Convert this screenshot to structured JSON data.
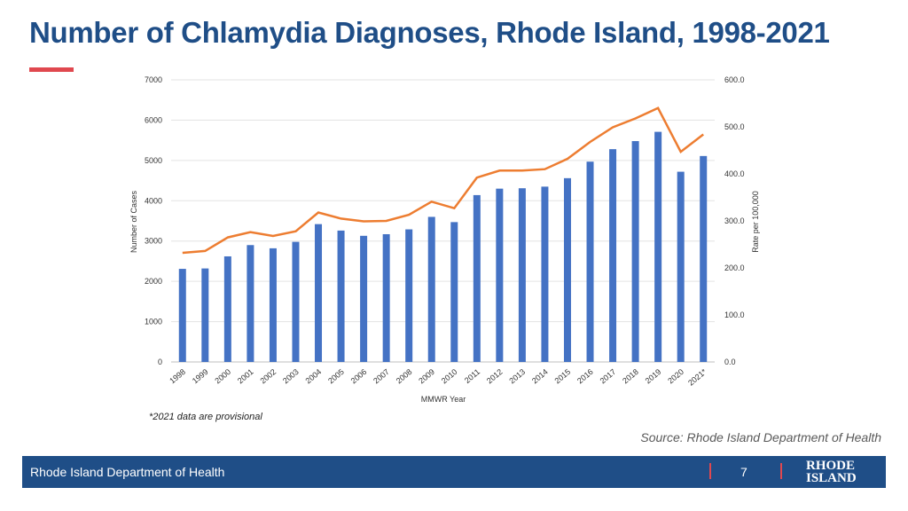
{
  "page": {
    "title": "Number of Chlamydia Diagnoses, Rhode Island, 1998-2021",
    "footnote": "*2021 data are provisional",
    "source_label": "Source:",
    "source_text": " Rhode Island Department of Health"
  },
  "footer": {
    "org": "Rhode Island Department of Health",
    "page_number": "7",
    "logo_line1": "RHODE",
    "logo_line2": "ISLAND"
  },
  "colors": {
    "title": "#1f4e87",
    "accent": "#e0484f",
    "bars": "#4472c4",
    "line": "#ed7d31",
    "footer_bg": "#1f4e87"
  },
  "chart_data": {
    "type": "bar",
    "categories": [
      "1998",
      "1999",
      "2000",
      "2001",
      "2002",
      "2003",
      "2004",
      "2005",
      "2006",
      "2007",
      "2008",
      "2009",
      "2010",
      "2011",
      "2012",
      "2013",
      "2014",
      "2015",
      "2016",
      "2017",
      "2018",
      "2019",
      "2020",
      "2021*"
    ],
    "series": [
      {
        "axis": "left",
        "chart": "bar",
        "values": [
          2310,
          2320,
          2620,
          2900,
          2820,
          2980,
          3420,
          3260,
          3130,
          3170,
          3290,
          3600,
          3470,
          4140,
          4300,
          4310,
          4350,
          4560,
          4970,
          5280,
          5480,
          5710,
          4720,
          5110
        ]
      },
      {
        "axis": "right",
        "chart": "line",
        "values": [
          232,
          236,
          265,
          276,
          268,
          278,
          318,
          305,
          299,
          300,
          313,
          341,
          327,
          392,
          407,
          407,
          410,
          432,
          468,
          499,
          518,
          540,
          447,
          484
        ]
      }
    ],
    "xlabel": "MMWR Year",
    "ylabel": "Number of Cases",
    "y2label": "Rate per 100,000",
    "ylim": [
      0,
      7000
    ],
    "y2lim": [
      0,
      600
    ],
    "yticks": [
      "0",
      "1000",
      "2000",
      "3000",
      "4000",
      "5000",
      "6000",
      "7000"
    ],
    "y2ticks": [
      "0.0",
      "100.0",
      "200.0",
      "300.0",
      "400.0",
      "500.0",
      "600.0"
    ],
    "grid": true,
    "legend": "none"
  }
}
